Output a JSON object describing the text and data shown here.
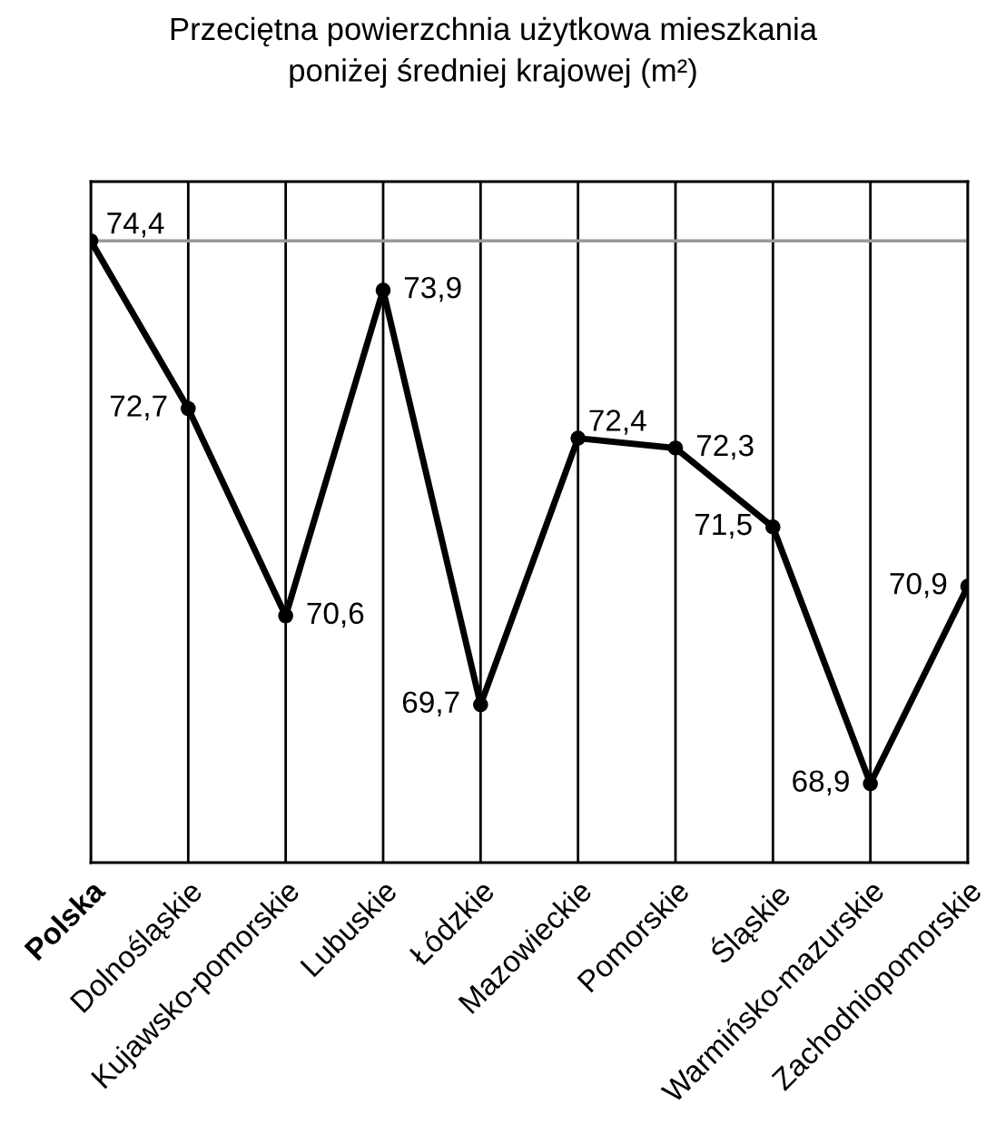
{
  "chart_data": {
    "type": "line",
    "title": "Przeciętna powierzchnia użytkowa mieszkania\nponiżej średniej krajowej (m²)",
    "categories": [
      "Polska",
      "Dolnośląskie",
      "Kujawsko-pomorskie",
      "Lubuskie",
      "Łódzkie",
      "Mazowieckie",
      "Pomorskie",
      "Śląskie",
      "Warmińsko-mazurskie",
      "Zachodniopomorskie"
    ],
    "series": [
      {
        "color": "#000000",
        "values": [
          74.4,
          72.7,
          70.6,
          73.9,
          69.7,
          72.4,
          72.3,
          71.5,
          68.9,
          70.9
        ],
        "value_labels": [
          "74,4",
          "72,7",
          "70,6",
          "73,9",
          "69,7",
          "72,4",
          "72,3",
          "71,5",
          "68,9",
          "70,9"
        ]
      }
    ],
    "ylim": [
      68.1,
      75
    ],
    "grid": "x",
    "tick_labels": "x",
    "marker": "circle",
    "line_style": "solid",
    "legend": false,
    "ref_lines": [
      {
        "axis": "y",
        "value": 74.4,
        "color": "#999999"
      }
    ]
  }
}
